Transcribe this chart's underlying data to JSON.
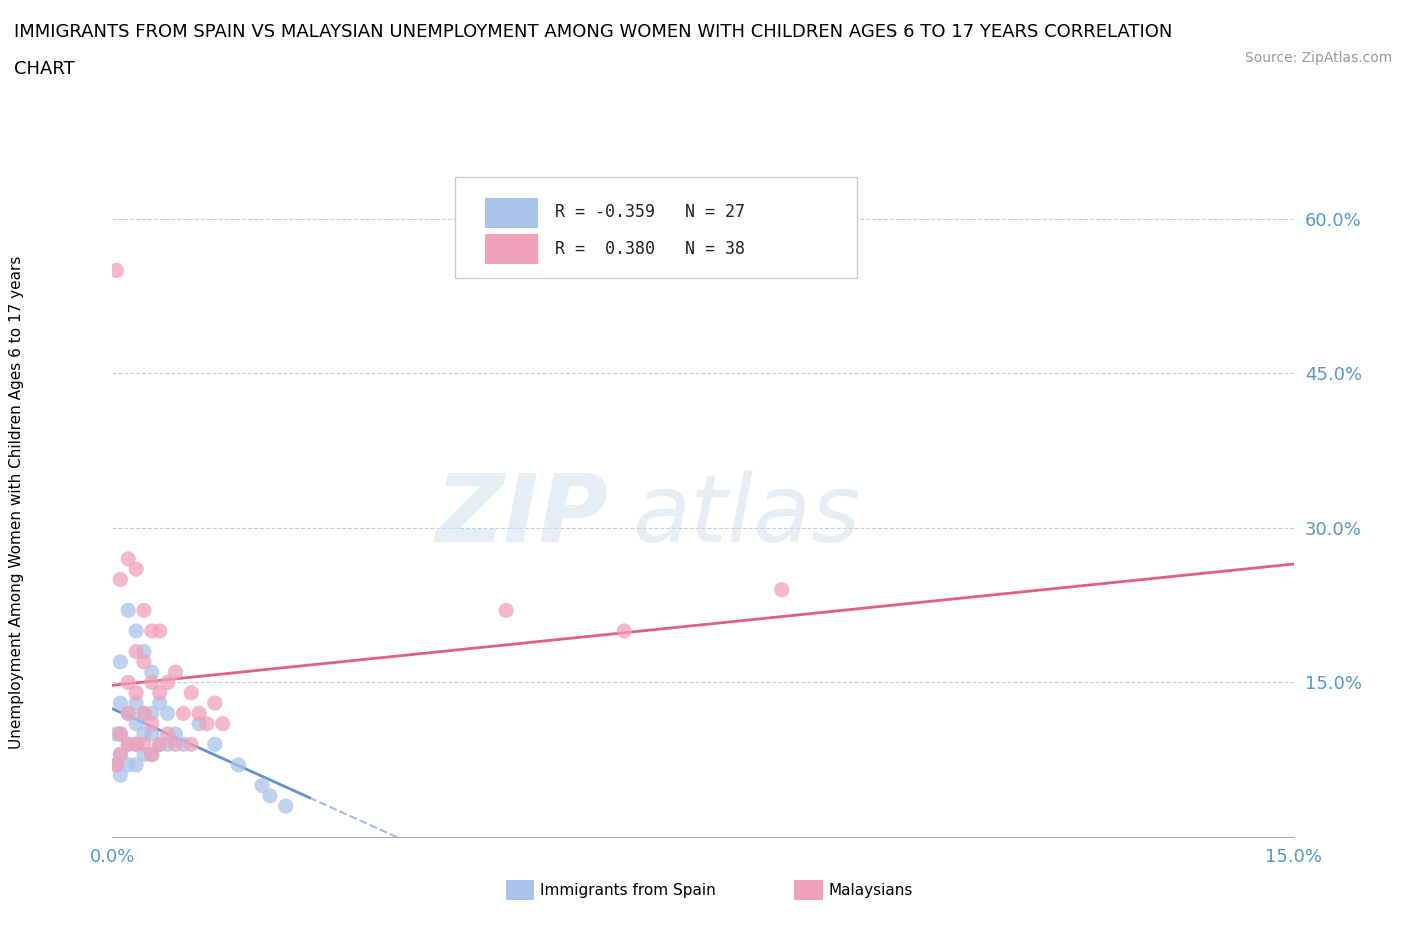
{
  "title_line1": "IMMIGRANTS FROM SPAIN VS MALAYSIAN UNEMPLOYMENT AMONG WOMEN WITH CHILDREN AGES 6 TO 17 YEARS CORRELATION",
  "title_line2": "CHART",
  "source": "Source: ZipAtlas.com",
  "ylabel": "Unemployment Among Women with Children Ages 6 to 17 years",
  "xlim": [
    0.0,
    0.15
  ],
  "ylim": [
    0.0,
    0.65
  ],
  "color_spain": "#a8c4e8",
  "color_malaysia": "#f0a0b8",
  "color_spain_line": "#6090d0",
  "color_malaysia_line": "#e06080",
  "spain_x": [
    0.0005,
    0.0005,
    0.001,
    0.001,
    0.001,
    0.001,
    0.001,
    0.002,
    0.002,
    0.002,
    0.002,
    0.003,
    0.003,
    0.003,
    0.003,
    0.003,
    0.004,
    0.004,
    0.004,
    0.004,
    0.005,
    0.005,
    0.005,
    0.005,
    0.006,
    0.006,
    0.007,
    0.007,
    0.008,
    0.009,
    0.011,
    0.013,
    0.016,
    0.019,
    0.02,
    0.022
  ],
  "spain_y": [
    0.07,
    0.1,
    0.06,
    0.08,
    0.1,
    0.13,
    0.17,
    0.07,
    0.09,
    0.12,
    0.22,
    0.07,
    0.09,
    0.11,
    0.13,
    0.2,
    0.08,
    0.1,
    0.12,
    0.18,
    0.08,
    0.1,
    0.12,
    0.16,
    0.09,
    0.13,
    0.09,
    0.12,
    0.1,
    0.09,
    0.11,
    0.09,
    0.07,
    0.05,
    0.04,
    0.03
  ],
  "malaysia_x": [
    0.0005,
    0.0005,
    0.001,
    0.001,
    0.001,
    0.002,
    0.002,
    0.002,
    0.002,
    0.003,
    0.003,
    0.003,
    0.003,
    0.004,
    0.004,
    0.004,
    0.004,
    0.005,
    0.005,
    0.005,
    0.005,
    0.006,
    0.006,
    0.006,
    0.007,
    0.007,
    0.008,
    0.008,
    0.009,
    0.01,
    0.01,
    0.011,
    0.012,
    0.013,
    0.014,
    0.05,
    0.065,
    0.085
  ],
  "malaysia_y": [
    0.07,
    0.55,
    0.08,
    0.1,
    0.25,
    0.09,
    0.12,
    0.15,
    0.27,
    0.09,
    0.14,
    0.18,
    0.26,
    0.09,
    0.12,
    0.17,
    0.22,
    0.08,
    0.11,
    0.15,
    0.2,
    0.09,
    0.14,
    0.2,
    0.1,
    0.15,
    0.09,
    0.16,
    0.12,
    0.09,
    0.14,
    0.12,
    0.11,
    0.13,
    0.11,
    0.22,
    0.2,
    0.24
  ],
  "spain_line_x": [
    0.0,
    0.15
  ],
  "malaysia_line_x": [
    0.0,
    0.15
  ]
}
